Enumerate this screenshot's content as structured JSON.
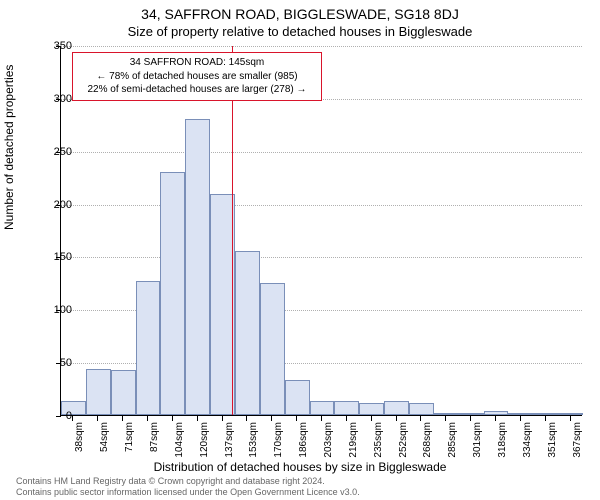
{
  "title_main": "34, SAFFRON ROAD, BIGGLESWADE, SG18 8DJ",
  "title_sub": "Size of property relative to detached houses in Biggleswade",
  "y_axis_label": "Number of detached properties",
  "x_axis_label": "Distribution of detached houses by size in Biggleswade",
  "chart": {
    "type": "histogram",
    "background_color": "#ffffff",
    "grid_color": "#b0b0b0",
    "axis_color": "#000000",
    "bar_fill": "#dbe3f3",
    "bar_border": "#7a8fb8",
    "bar_width_ratio": 1.0,
    "ylim": [
      0,
      350
    ],
    "yticks": [
      0,
      50,
      100,
      150,
      200,
      250,
      300,
      350
    ],
    "x_categories": [
      "38sqm",
      "54sqm",
      "71sqm",
      "87sqm",
      "104sqm",
      "120sqm",
      "137sqm",
      "153sqm",
      "170sqm",
      "186sqm",
      "203sqm",
      "219sqm",
      "235sqm",
      "252sqm",
      "268sqm",
      "285sqm",
      "301sqm",
      "318sqm",
      "334sqm",
      "351sqm",
      "367sqm"
    ],
    "values": [
      13,
      44,
      43,
      127,
      230,
      280,
      209,
      155,
      125,
      33,
      13,
      13,
      11,
      13,
      11,
      2,
      0,
      4,
      0,
      0,
      2
    ],
    "marker": {
      "x_position_sqm": 145,
      "color": "#d9142b",
      "fractional_x": 0.328
    },
    "label_fontsize": 12,
    "tick_fontsize": 11,
    "xtick_fontsize": 10,
    "xtick_rotation_deg": -90
  },
  "annotation": {
    "lines": [
      "34 SAFFRON ROAD: 145sqm",
      "← 78% of detached houses are smaller (985)",
      "22% of semi-detached houses are larger (278) →"
    ],
    "border_color": "#d9142b",
    "background_color": "#ffffff",
    "font_size": 10
  },
  "footer": {
    "line1": "Contains HM Land Registry data © Crown copyright and database right 2024.",
    "line2": "Contains public sector information licensed under the Open Government Licence v3.0."
  }
}
